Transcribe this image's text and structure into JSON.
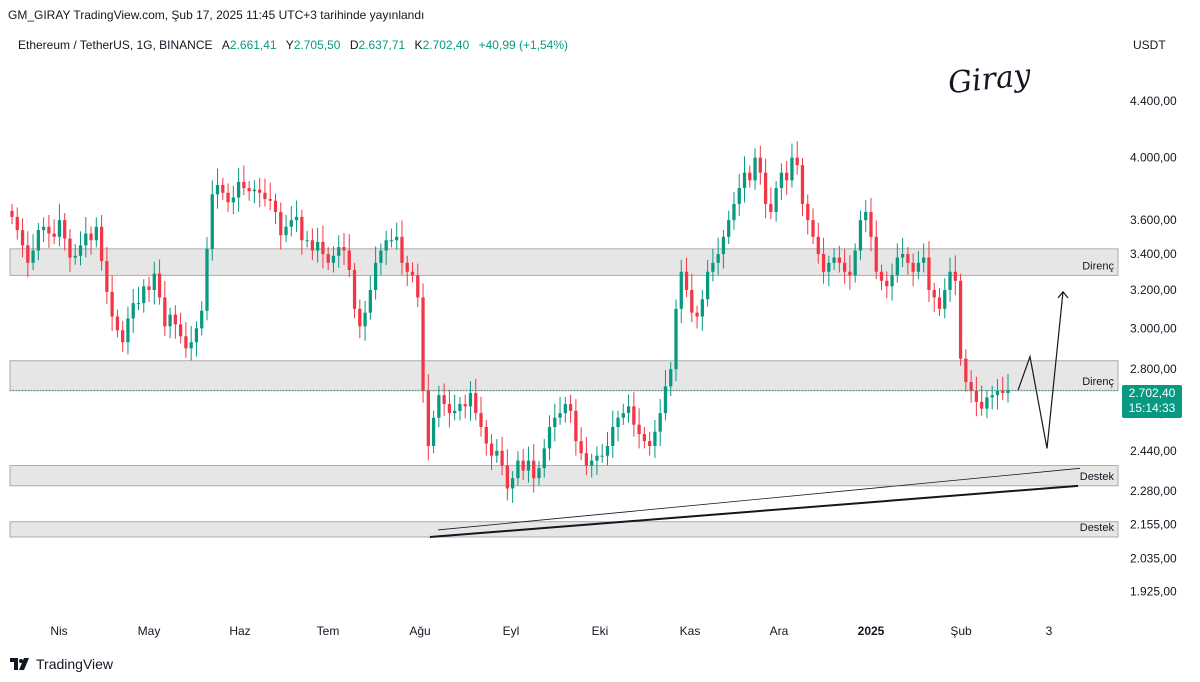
{
  "header": {
    "publisher": "GM_GIRAY TradingView.com, Şub 17, 2025 11:45 UTC+3 tarihinde yayınlandı",
    "symbol": "Ethereum / TetherUS, 1G, BINANCE",
    "open_label": "A",
    "open": "2.661,41",
    "high_label": "Y",
    "high": "2.705,50",
    "low_label": "D",
    "low": "2.637,71",
    "close_label": "K",
    "close": "2.702,40",
    "change": "+40,99 (+1,54%)",
    "currency": "USDT"
  },
  "signature": "Giray",
  "brand": "TradingView",
  "price_badge": {
    "price": "2.702,40",
    "countdown": "15:14:33"
  },
  "chart_data": {
    "type": "candlestick",
    "y_scale": "log",
    "ylim": [
      1850,
      4700
    ],
    "y_ticks": [
      {
        "value": 4400,
        "label": "4.400,00"
      },
      {
        "value": 4000,
        "label": "4.000,00"
      },
      {
        "value": 3600,
        "label": "3.600,00"
      },
      {
        "value": 3400,
        "label": "3.400,00"
      },
      {
        "value": 3200,
        "label": "3.200,00"
      },
      {
        "value": 3000,
        "label": "3.000,00"
      },
      {
        "value": 2800,
        "label": "2.800,00"
      },
      {
        "value": 2600,
        "label": "2.600,00"
      },
      {
        "value": 2440,
        "label": "2.440,00"
      },
      {
        "value": 2280,
        "label": "2.280,00"
      },
      {
        "value": 2155,
        "label": "2.155,00"
      },
      {
        "value": 2035,
        "label": "2.035,00"
      },
      {
        "value": 1925,
        "label": "1.925,00"
      }
    ],
    "x_ticks": [
      "Nis",
      "May",
      "Haz",
      "Tem",
      "Ağu",
      "Eyl",
      "Eki",
      "Kas",
      "Ara",
      "2025",
      "Şub",
      "3"
    ],
    "zones": [
      {
        "label": "Direnç",
        "low": 3280,
        "high": 3430
      },
      {
        "label": "Direnç",
        "low": 2700,
        "high": 2840
      },
      {
        "label": "Destek",
        "low": 2300,
        "high": 2380
      },
      {
        "label": "Destek",
        "low": 2110,
        "high": 2165
      }
    ],
    "trendline": {
      "start": 2110,
      "end": 2300
    },
    "projection": [
      2702,
      2860,
      2450,
      3190
    ],
    "last_price": 2702.4,
    "closes": [
      3620,
      3540,
      3450,
      3350,
      3420,
      3540,
      3560,
      3520,
      3500,
      3600,
      3490,
      3380,
      3390,
      3450,
      3520,
      3480,
      3560,
      3360,
      3190,
      3060,
      2990,
      2930,
      3050,
      3130,
      3130,
      3220,
      3200,
      3290,
      3160,
      3010,
      3070,
      3020,
      2960,
      2900,
      2930,
      3000,
      3090,
      3430,
      3760,
      3820,
      3770,
      3710,
      3740,
      3840,
      3800,
      3780,
      3790,
      3770,
      3730,
      3720,
      3650,
      3510,
      3560,
      3600,
      3620,
      3480,
      3480,
      3420,
      3470,
      3400,
      3350,
      3390,
      3440,
      3420,
      3310,
      3100,
      3010,
      3080,
      3200,
      3350,
      3420,
      3480,
      3480,
      3500,
      3350,
      3300,
      3280,
      3160,
      2700,
      2460,
      2580,
      2680,
      2640,
      2600,
      2610,
      2640,
      2630,
      2690,
      2600,
      2540,
      2470,
      2420,
      2440,
      2380,
      2290,
      2330,
      2400,
      2360,
      2400,
      2330,
      2370,
      2450,
      2540,
      2580,
      2600,
      2640,
      2610,
      2480,
      2430,
      2380,
      2400,
      2420,
      2420,
      2460,
      2540,
      2580,
      2600,
      2630,
      2550,
      2510,
      2480,
      2460,
      2520,
      2600,
      2720,
      2800,
      3100,
      3300,
      3200,
      3080,
      3060,
      3150,
      3300,
      3350,
      3400,
      3500,
      3600,
      3700,
      3800,
      3900,
      3850,
      4000,
      3900,
      3700,
      3650,
      3800,
      3900,
      3850,
      4000,
      3950,
      3700,
      3600,
      3500,
      3400,
      3300,
      3350,
      3380,
      3350,
      3300,
      3280,
      3420,
      3600,
      3650,
      3500,
      3300,
      3250,
      3220,
      3280,
      3380,
      3400,
      3350,
      3300,
      3350,
      3380,
      3200,
      3160,
      3100,
      3200,
      3300,
      3250,
      2850,
      2740,
      2700,
      2650,
      2620,
      2670,
      2680,
      2700,
      2690,
      2702
    ]
  }
}
